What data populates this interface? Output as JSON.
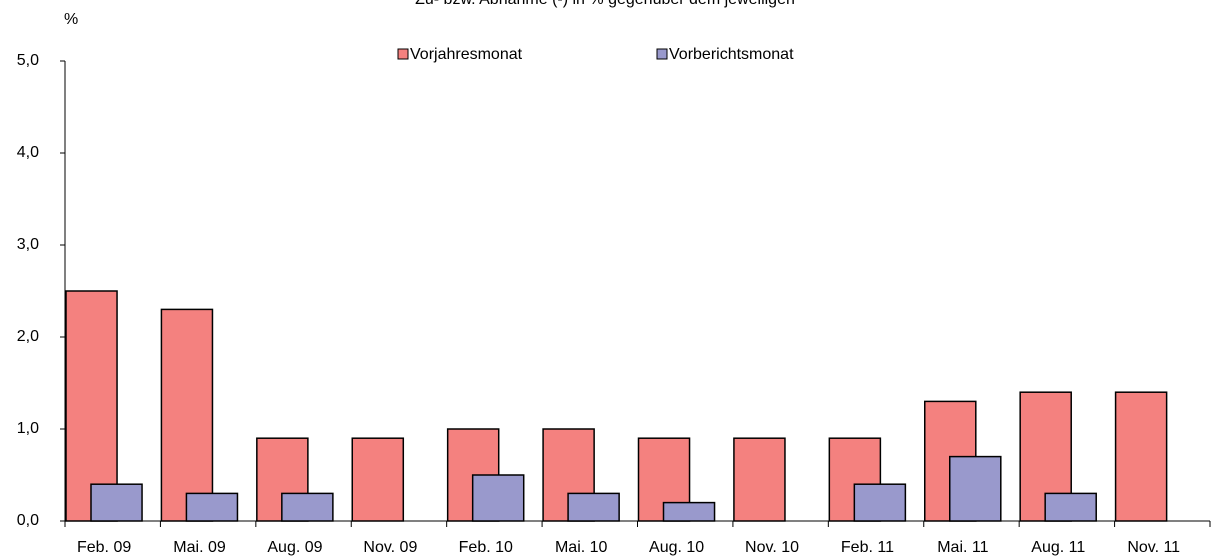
{
  "chart_data": {
    "type": "bar",
    "title": "Zu- bzw. Abnahme (-) in % gegenüber dem jeweiligen",
    "y_label": "%",
    "categories": [
      "Feb. 09",
      "Mai. 09",
      "Aug. 09",
      "Nov. 09",
      "Feb. 10",
      "Mai. 10",
      "Aug. 10",
      "Nov. 10",
      "Feb. 11",
      "Mai. 11",
      "Aug. 11",
      "Nov. 11"
    ],
    "series": [
      {
        "name": "Vorjahresmonat",
        "color": "#f4817f",
        "values": [
          2.5,
          2.3,
          0.9,
          0.9,
          1.0,
          1.0,
          0.9,
          0.9,
          0.9,
          1.3,
          1.4,
          1.4
        ]
      },
      {
        "name": "Vorberichtsmonat",
        "color": "#9999cc",
        "values": [
          0.4,
          0.3,
          0.3,
          null,
          0.5,
          0.3,
          0.2,
          null,
          0.4,
          0.7,
          0.3,
          null
        ]
      }
    ],
    "ylim": [
      0,
      5
    ],
    "yticks": [
      {
        "value": 0,
        "label": "0,0"
      },
      {
        "value": 1,
        "label": "1,0"
      },
      {
        "value": 2,
        "label": "2,0"
      },
      {
        "value": 3,
        "label": "3,0"
      },
      {
        "value": 4,
        "label": "4,0"
      },
      {
        "value": 5,
        "label": "5,0"
      }
    ],
    "legend": "top"
  }
}
